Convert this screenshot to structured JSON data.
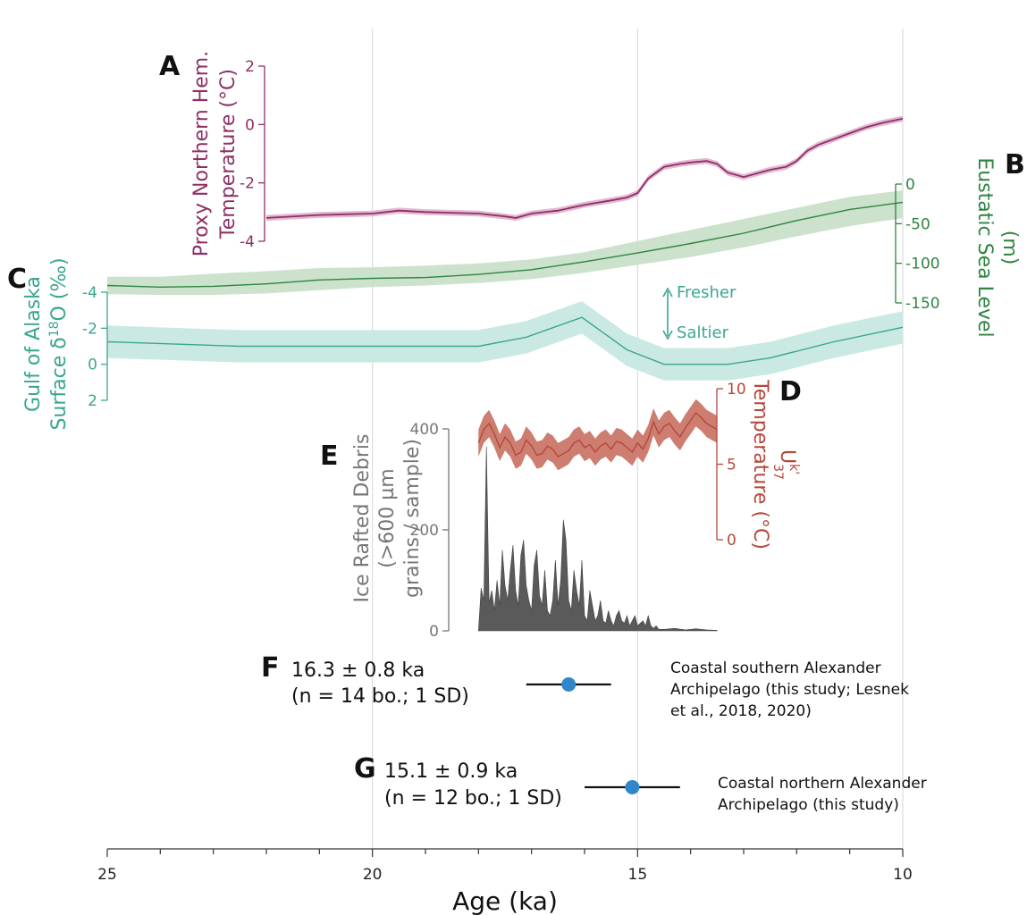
{
  "chart_data": {
    "type": "line",
    "x_axis": {
      "label": "Age (ka)",
      "range": [
        25,
        10
      ],
      "ticks": [
        25,
        20,
        15,
        10
      ],
      "reversed": true,
      "grid": true
    },
    "panels": [
      {
        "id": "A",
        "letter": "A",
        "ylabel_lines": [
          "Proxy Northern Hem.",
          "Temperature (°C)"
        ],
        "yticks": [
          2,
          0,
          -2,
          -4
        ],
        "ylim": [
          -4,
          2
        ],
        "color": "#8e2f66",
        "band_color": "#e3b8d1",
        "series": [
          {
            "x": [
              22,
              21,
              20,
              19.5,
              19,
              18,
              17.5,
              17.3,
              17,
              16.5,
              16,
              15.5,
              15.2,
              15,
              14.8,
              14.5,
              14.2,
              14,
              13.7,
              13.5,
              13.3,
              13,
              12.7,
              12.5,
              12.2,
              12,
              11.8,
              11.6,
              11.3,
              11,
              10.7,
              10.4,
              10
            ],
            "y": [
              -3.2,
              -3.1,
              -3.05,
              -2.95,
              -3.0,
              -3.05,
              -3.15,
              -3.2,
              -3.05,
              -2.95,
              -2.75,
              -2.6,
              -2.5,
              -2.35,
              -1.85,
              -1.45,
              -1.35,
              -1.3,
              -1.25,
              -1.35,
              -1.65,
              -1.8,
              -1.65,
              -1.55,
              -1.45,
              -1.25,
              -0.9,
              -0.7,
              -0.5,
              -0.3,
              -0.1,
              0.05,
              0.2
            ],
            "band": 0.1
          }
        ]
      },
      {
        "id": "B",
        "letter": "B",
        "ylabel_lines": [
          "Eustatic Sea Level",
          "(m)"
        ],
        "yticks": [
          0,
          -50,
          -100,
          -150
        ],
        "ylim": [
          -150,
          0
        ],
        "color": "#2e8540",
        "band_color": "#c7dfc7",
        "series": [
          {
            "x": [
              25,
              24,
              23,
              22,
              21,
              20,
              19,
              18,
              17,
              16,
              15,
              14,
              13,
              12,
              11,
              10
            ],
            "y": [
              -128,
              -130,
              -129,
              -126,
              -121,
              -119,
              -118,
              -114,
              -108,
              -98,
              -87,
              -75,
              -62,
              -46,
              -32,
              -23
            ],
            "band_lower": [
              -139,
              -140,
              -140,
              -138,
              -134,
              -130,
              -128,
              -125,
              -120,
              -112,
              -102,
              -92,
              -80,
              -66,
              -53,
              -43
            ],
            "band_upper": [
              -117,
              -117,
              -113,
              -110,
              -106,
              -105,
              -103,
              -100,
              -95,
              -86,
              -72,
              -58,
              -44,
              -30,
              -16,
              -8
            ]
          }
        ]
      },
      {
        "id": "C",
        "letter": "C",
        "ylabel_lines": [
          "Gulf of Alaska",
          "Surface δ18O (‰)"
        ],
        "yticks": [
          -4,
          -2,
          0,
          2
        ],
        "ylim": [
          -4,
          2
        ],
        "color": "#3aa68e",
        "band_color": "#c7e8e2",
        "arrow_labels": [
          "Fresher",
          "Saltier"
        ],
        "series": [
          {
            "x": [
              25,
              22.5,
              20,
              18,
              17.1,
              16.05,
              15.2,
              14.5,
              13.3,
              12.5,
              11.3,
              10
            ],
            "y": [
              -1.25,
              -1.0,
              -1.0,
              -1.0,
              -1.5,
              -2.6,
              -0.8,
              0.0,
              0.0,
              -0.35,
              -1.25,
              -2.05
            ],
            "band": 0.9
          }
        ]
      },
      {
        "id": "D",
        "letter": "D",
        "ylabel_lines": [
          "Temperature (°C)"
        ],
        "ylabel_symbol": "U",
        "ylabel_sup": "k'",
        "ylabel_sub": "37",
        "yticks": [
          10,
          5,
          0
        ],
        "ylim": [
          0,
          10
        ],
        "color": "#b5473a",
        "band_color": "#cd7e70",
        "series": [
          {
            "x": [
              18.0,
              17.9,
              17.8,
              17.7,
              17.6,
              17.5,
              17.4,
              17.3,
              17.2,
              17.1,
              17.0,
              16.9,
              16.8,
              16.7,
              16.6,
              16.5,
              16.4,
              16.3,
              16.2,
              16.1,
              16.0,
              15.9,
              15.8,
              15.7,
              15.6,
              15.5,
              15.4,
              15.3,
              15.2,
              15.1,
              15.0,
              14.9,
              14.8,
              14.7,
              14.6,
              14.5,
              14.4,
              14.3,
              14.2,
              14.1,
              14.0,
              13.9,
              13.8,
              13.7,
              13.6,
              13.5
            ],
            "y": [
              6.4,
              7.3,
              7.7,
              7.0,
              6.1,
              6.8,
              6.4,
              5.6,
              5.8,
              6.6,
              6.2,
              5.6,
              5.7,
              6.2,
              6.0,
              5.5,
              5.7,
              5.9,
              6.4,
              6.6,
              6.1,
              6.3,
              5.8,
              6.2,
              6.4,
              6.0,
              6.5,
              6.4,
              6.1,
              5.8,
              6.4,
              6.0,
              6.7,
              7.8,
              7.0,
              7.5,
              7.7,
              7.2,
              6.8,
              7.4,
              7.9,
              8.4,
              8.1,
              7.7,
              7.5,
              7.3
            ],
            "band": 0.9
          }
        ]
      },
      {
        "id": "E",
        "letter": "E",
        "type": "area",
        "ylabel_lines": [
          "Ice Rafted Debris",
          "(>600 µm",
          "grains / sample)"
        ],
        "yticks": [
          400,
          200,
          0
        ],
        "ylim": [
          0,
          400
        ],
        "color": "#5a5a5a",
        "series": [
          {
            "x": [
              18.0,
              17.95,
              17.9,
              17.85,
              17.8,
              17.75,
              17.7,
              17.65,
              17.6,
              17.55,
              17.5,
              17.45,
              17.4,
              17.35,
              17.3,
              17.25,
              17.2,
              17.15,
              17.1,
              17.05,
              17.0,
              16.95,
              16.9,
              16.85,
              16.8,
              16.75,
              16.7,
              16.65,
              16.6,
              16.55,
              16.5,
              16.45,
              16.4,
              16.35,
              16.3,
              16.25,
              16.2,
              16.15,
              16.1,
              16.05,
              16.0,
              15.95,
              15.9,
              15.85,
              15.8,
              15.75,
              15.7,
              15.65,
              15.6,
              15.55,
              15.5,
              15.45,
              15.4,
              15.35,
              15.3,
              15.25,
              15.2,
              15.15,
              15.1,
              15.05,
              15.0,
              14.95,
              14.9,
              14.85,
              14.8,
              14.75,
              14.7,
              14.65,
              14.6,
              14.5,
              14.3,
              14.1,
              13.9,
              13.7,
              13.5
            ],
            "y": [
              0,
              85,
              60,
              365,
              55,
              80,
              40,
              100,
              50,
              160,
              90,
              60,
              120,
              170,
              80,
              50,
              150,
              180,
              90,
              60,
              40,
              130,
              160,
              70,
              50,
              120,
              40,
              30,
              60,
              140,
              50,
              100,
              220,
              180,
              60,
              40,
              120,
              80,
              50,
              140,
              30,
              20,
              80,
              50,
              20,
              30,
              60,
              20,
              15,
              40,
              20,
              10,
              30,
              40,
              20,
              15,
              30,
              10,
              20,
              30,
              10,
              15,
              20,
              10,
              30,
              10,
              5,
              10,
              3,
              3,
              5,
              2,
              4,
              2,
              1
            ]
          }
        ]
      }
    ],
    "points": [
      {
        "id": "F",
        "letter": "F",
        "x": 16.3,
        "err": 0.8,
        "label_lines": [
          "16.3 ±  0.8 ka",
          "(n = 14 bo.; 1 SD)"
        ],
        "note_lines": [
          "Coastal southern Alexander",
          "Archipelago (this study; Lesnek",
          "et al., 2018, 2020)"
        ]
      },
      {
        "id": "G",
        "letter": "G",
        "x": 15.1,
        "err": 0.9,
        "label_lines": [
          "15.1 ±  0.9 ka",
          "(n = 12 bo.; 1 SD)"
        ],
        "note_lines": [
          "Coastal northern Alexander",
          "Archipelago (this study)"
        ]
      }
    ],
    "point_color": "#2f86c9"
  }
}
